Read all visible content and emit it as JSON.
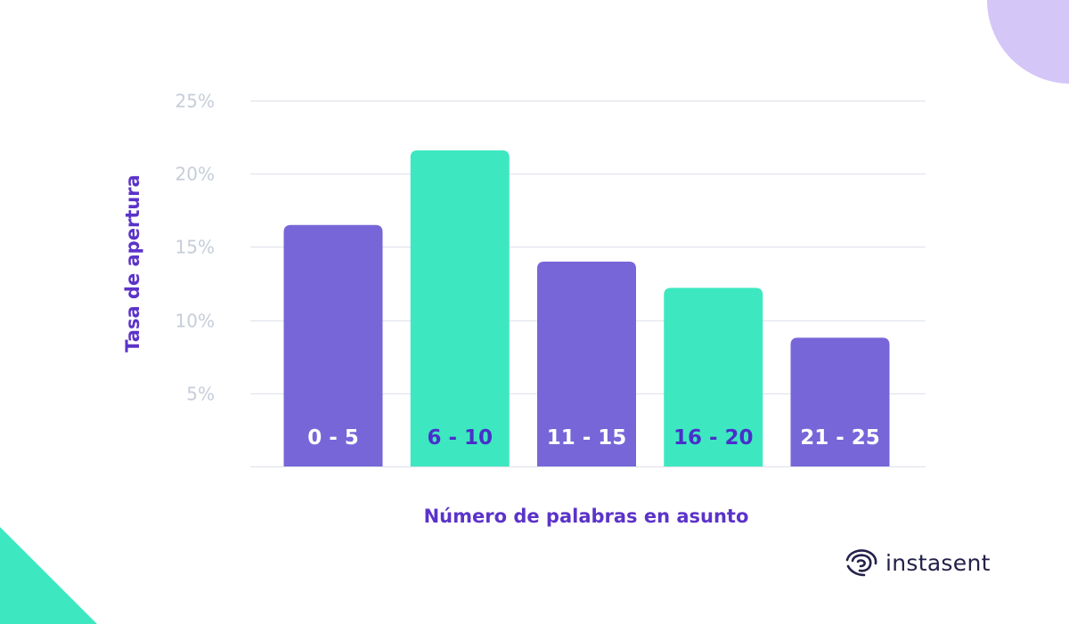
{
  "brand": {
    "name": "instasent",
    "logo_icon": "fingerprint-icon"
  },
  "colors": {
    "purple": "#7766d8",
    "teal": "#3de8c0",
    "title_purple": "#5b33c9",
    "tick_gray": "#c6cdd9",
    "grid_gray": "#dde1ea",
    "deco_lavender": "#d5c6f8",
    "label_white": "#ffffff",
    "label_dark": "#4a2fcb"
  },
  "chart_data": {
    "type": "bar",
    "categories": [
      "0 - 5",
      "6 - 10",
      "11 - 15",
      "16 - 20",
      "21 - 25"
    ],
    "values": [
      16.5,
      21.6,
      14.0,
      12.2,
      8.8
    ],
    "bar_colors": [
      "purple",
      "teal",
      "purple",
      "teal",
      "purple"
    ],
    "xlabel": "Número de palabras en asunto",
    "ylabel": "Tasa de apertura",
    "ylim": [
      0,
      25
    ],
    "yticks": [
      5,
      10,
      15,
      20,
      25
    ],
    "ytick_labels": [
      "5%",
      "10%",
      "15%",
      "20%",
      "25%"
    ],
    "grid": true,
    "legend": "none"
  }
}
